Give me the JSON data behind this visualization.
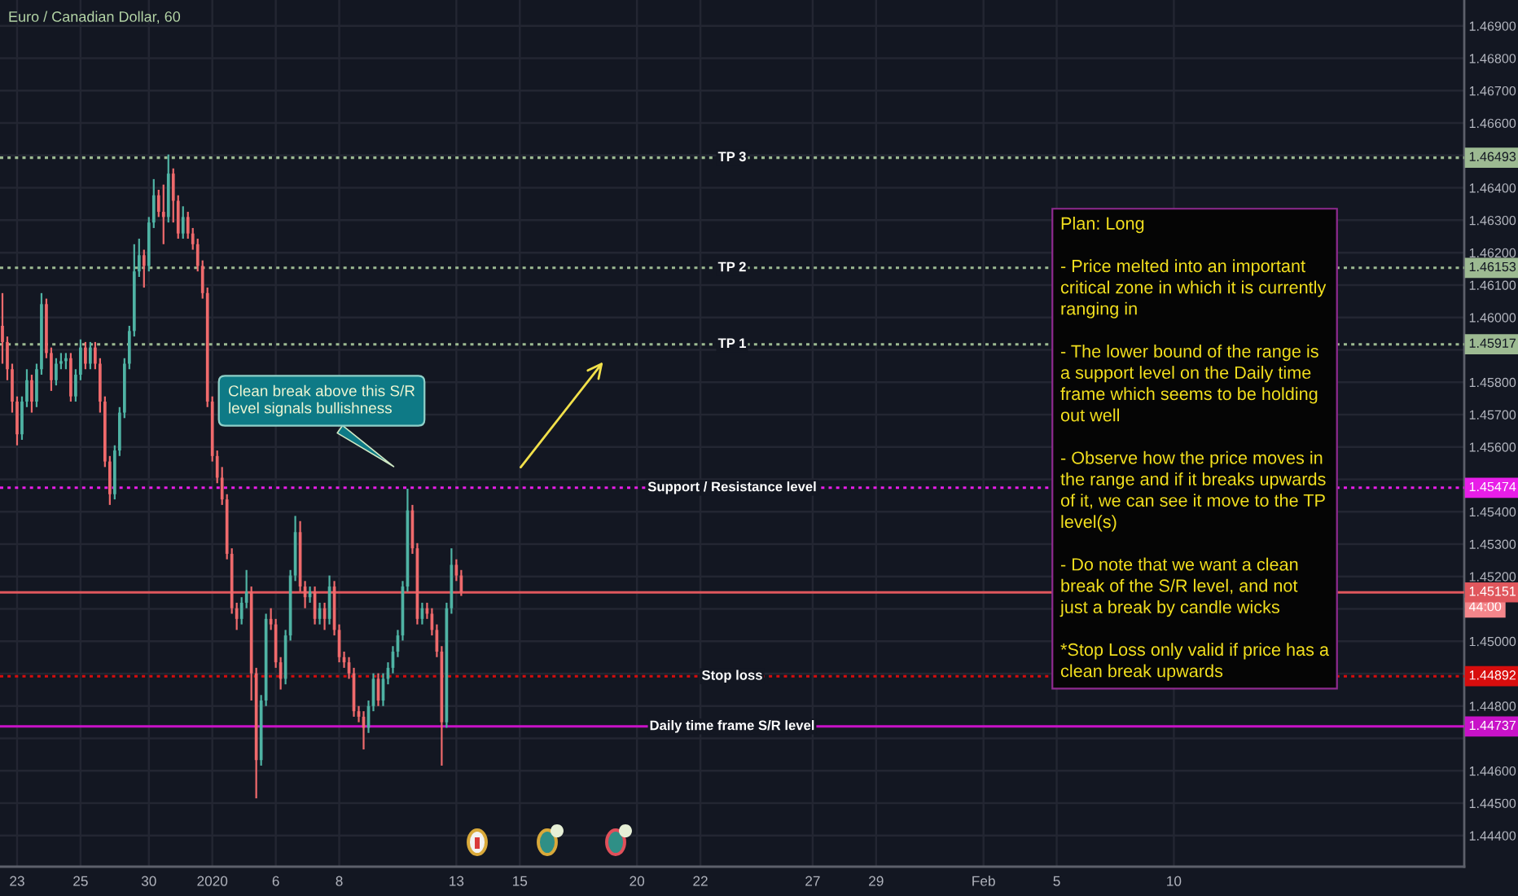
{
  "chart_data": {
    "type": "candlestick",
    "title": "Euro / Canadian Dollar, 60",
    "categories": [
      null,
      null,
      null,
      "23",
      null,
      null,
      null,
      null,
      null,
      null,
      null,
      null,
      null,
      null,
      null,
      null,
      "25",
      null,
      null,
      null,
      null,
      null,
      null,
      null,
      null,
      null,
      null,
      null,
      null,
      null,
      "30",
      null,
      null,
      null,
      null,
      null,
      null,
      null,
      null,
      null,
      null,
      null,
      null,
      "2020",
      null,
      null,
      null,
      null,
      null,
      null,
      null,
      null,
      null,
      null,
      null,
      null,
      "6",
      null,
      null,
      null,
      null,
      null,
      null,
      null,
      null,
      null,
      null,
      null,
      null,
      "8",
      null,
      null,
      null,
      null,
      null,
      null,
      null,
      null,
      null,
      null,
      null,
      null,
      null,
      null,
      null,
      null,
      null,
      null,
      null,
      null,
      null,
      null,
      null,
      "13",
      null,
      null,
      null,
      null,
      null,
      null,
      null,
      null,
      null,
      null,
      null,
      null,
      "15",
      null,
      null,
      null,
      null,
      null,
      null,
      null,
      null,
      null,
      null,
      null,
      null,
      null,
      null,
      null,
      null,
      null,
      null,
      null,
      null,
      null,
      null,
      null,
      "20",
      null,
      null,
      null,
      null,
      null,
      null,
      null,
      null,
      null,
      null,
      null,
      null,
      "22",
      null,
      null,
      null,
      null,
      null,
      null,
      null,
      null,
      null,
      null,
      null,
      null,
      null,
      null,
      null,
      null,
      null,
      null,
      null,
      null,
      null,
      null,
      "27",
      null,
      null,
      null,
      null,
      null,
      null,
      null,
      null,
      null,
      null,
      null,
      null,
      "29",
      null,
      null,
      null,
      null,
      null,
      null,
      null,
      null,
      null,
      null,
      null,
      null,
      null,
      null,
      null,
      null,
      null,
      null,
      null,
      null,
      null,
      "Feb",
      null,
      null,
      null,
      null,
      null,
      null,
      null,
      null,
      null,
      null,
      null,
      null,
      null,
      null,
      "5",
      null,
      null,
      null,
      null,
      null,
      null,
      null,
      null,
      null,
      null,
      null,
      null,
      null,
      null,
      null,
      null,
      null,
      null,
      null,
      null,
      null,
      null,
      null,
      "10",
      null,
      null,
      null,
      null,
      null,
      null,
      null,
      null,
      null,
      null,
      null,
      null,
      null,
      null,
      null,
      null,
      null,
      null,
      null,
      null,
      null,
      null,
      null,
      null,
      null,
      null,
      null,
      null,
      null,
      null,
      null,
      null,
      null,
      null,
      null,
      null,
      null,
      null,
      null,
      null,
      null,
      null,
      null,
      null,
      null,
      null,
      null,
      null,
      null,
      null,
      null,
      null,
      null,
      null,
      null,
      null,
      null,
      null,
      null
    ],
    "ohlc": [
      [
        1.45974,
        1.46075,
        1.45857,
        1.45924
      ],
      [
        1.45924,
        1.45941,
        1.45806,
        1.4584
      ],
      [
        1.4584,
        1.45857,
        1.45706,
        1.4574
      ],
      [
        1.4574,
        1.45756,
        1.45605,
        1.45639
      ],
      [
        1.45639,
        1.45756,
        1.45622,
        1.4574
      ],
      [
        1.4574,
        1.4584,
        1.45723,
        1.45806
      ],
      [
        1.45806,
        1.45823,
        1.45706,
        1.4574
      ],
      [
        1.4574,
        1.45857,
        1.45723,
        1.4584
      ],
      [
        1.4584,
        1.46075,
        1.45823,
        1.46041
      ],
      [
        1.46041,
        1.46058,
        1.45874,
        1.4589
      ],
      [
        1.4589,
        1.45907,
        1.45773,
        1.45806
      ],
      [
        1.45806,
        1.45874,
        1.4579,
        1.45857
      ],
      [
        1.45857,
        1.4589,
        1.4584,
        1.45865
      ],
      [
        1.45865,
        1.4589,
        1.4584,
        1.45874
      ],
      [
        1.45874,
        1.4589,
        1.4574,
        1.45756
      ],
      [
        1.45756,
        1.4584,
        1.4574,
        1.45823
      ],
      [
        1.45823,
        1.45932,
        1.45806,
        1.45907
      ],
      [
        1.45907,
        1.45924,
        1.4584,
        1.45857
      ],
      [
        1.45857,
        1.45924,
        1.4584,
        1.45907
      ],
      [
        1.45907,
        1.45924,
        1.4584,
        1.45857
      ],
      [
        1.45857,
        1.45874,
        1.45706,
        1.4574
      ],
      [
        1.4574,
        1.45756,
        1.45538,
        1.45555
      ],
      [
        1.45555,
        1.45572,
        1.45421,
        1.45454
      ],
      [
        1.45454,
        1.45605,
        1.45438,
        1.45589
      ],
      [
        1.45589,
        1.45723,
        1.45572,
        1.45706
      ],
      [
        1.45706,
        1.45874,
        1.45689,
        1.45857
      ],
      [
        1.45857,
        1.45974,
        1.4584,
        1.45958
      ],
      [
        1.45958,
        1.46226,
        1.45941,
        1.46142
      ],
      [
        1.46142,
        1.46243,
        1.46125,
        1.46192
      ],
      [
        1.46192,
        1.46209,
        1.46092,
        1.46159
      ],
      [
        1.46159,
        1.4631,
        1.46142,
        1.46293
      ],
      [
        1.46293,
        1.46427,
        1.46276,
        1.46377
      ],
      [
        1.46377,
        1.46394,
        1.4631,
        1.46326
      ],
      [
        1.46326,
        1.4641,
        1.46226,
        1.4631
      ],
      [
        1.4631,
        1.46503,
        1.46293,
        1.46444
      ],
      [
        1.46444,
        1.4646,
        1.46293,
        1.4636
      ],
      [
        1.4636,
        1.46377,
        1.46243,
        1.46259
      ],
      [
        1.46259,
        1.46343,
        1.46243,
        1.4631
      ],
      [
        1.4631,
        1.46326,
        1.46243,
        1.46259
      ],
      [
        1.46259,
        1.46276,
        1.46209,
        1.46226
      ],
      [
        1.46226,
        1.46243,
        1.46142,
        1.46159
      ],
      [
        1.46159,
        1.46176,
        1.46058,
        1.46075
      ],
      [
        1.46075,
        1.46092,
        1.45723,
        1.4574
      ],
      [
        1.4574,
        1.45756,
        1.45555,
        1.45572
      ],
      [
        1.45572,
        1.45589,
        1.45488,
        1.45505
      ],
      [
        1.45505,
        1.45538,
        1.45421,
        1.45438
      ],
      [
        1.45438,
        1.45454,
        1.45253,
        1.4527
      ],
      [
        1.4527,
        1.45287,
        1.45085,
        1.45102
      ],
      [
        1.45102,
        1.45119,
        1.45035,
        1.45069
      ],
      [
        1.45069,
        1.45136,
        1.45052,
        1.45119
      ],
      [
        1.45119,
        1.4522,
        1.45102,
        1.45153
      ],
      [
        1.45153,
        1.45169,
        1.44817,
        1.44901
      ],
      [
        1.44901,
        1.44918,
        1.44515,
        1.44633
      ],
      [
        1.44633,
        1.44834,
        1.44616,
        1.44817
      ],
      [
        1.44817,
        1.45085,
        1.448,
        1.45069
      ],
      [
        1.45069,
        1.45102,
        1.45035,
        1.45052
      ],
      [
        1.45052,
        1.45069,
        1.44918,
        1.44935
      ],
      [
        1.44935,
        1.44951,
        1.44851,
        1.44884
      ],
      [
        1.44884,
        1.45035,
        1.44867,
        1.45018
      ],
      [
        1.45018,
        1.4522,
        1.45002,
        1.45203
      ],
      [
        1.45203,
        1.45387,
        1.45186,
        1.45337
      ],
      [
        1.45337,
        1.45371,
        1.45153,
        1.45169
      ],
      [
        1.45169,
        1.45186,
        1.45102,
        1.45136
      ],
      [
        1.45136,
        1.45169,
        1.45119,
        1.45153
      ],
      [
        1.45153,
        1.45169,
        1.45052,
        1.45069
      ],
      [
        1.45069,
        1.45119,
        1.45052,
        1.45102
      ],
      [
        1.45102,
        1.45119,
        1.45035,
        1.45069
      ],
      [
        1.45069,
        1.45203,
        1.45052,
        1.45169
      ],
      [
        1.45169,
        1.45186,
        1.45018,
        1.45035
      ],
      [
        1.45035,
        1.45052,
        1.44935,
        1.44951
      ],
      [
        1.44951,
        1.44968,
        1.44918,
        1.44935
      ],
      [
        1.44935,
        1.44951,
        1.44884,
        1.44901
      ],
      [
        1.44901,
        1.44918,
        1.44767,
        1.44784
      ],
      [
        1.44784,
        1.448,
        1.4475,
        1.44767
      ],
      [
        1.44767,
        1.44784,
        1.44666,
        1.44733
      ],
      [
        1.44733,
        1.44817,
        1.44717,
        1.448
      ],
      [
        1.448,
        1.44901,
        1.44784,
        1.44884
      ],
      [
        1.44884,
        1.44901,
        1.448,
        1.44817
      ],
      [
        1.44817,
        1.44901,
        1.448,
        1.44884
      ],
      [
        1.44884,
        1.44935,
        1.44867,
        1.44918
      ],
      [
        1.44918,
        1.44985,
        1.44901,
        1.44968
      ],
      [
        1.44968,
        1.45035,
        1.44951,
        1.45018
      ],
      [
        1.45018,
        1.45186,
        1.45002,
        1.45169
      ],
      [
        1.45169,
        1.45471,
        1.45153,
        1.45404
      ],
      [
        1.45404,
        1.45421,
        1.4527,
        1.45287
      ],
      [
        1.45287,
        1.45303,
        1.45052,
        1.45069
      ],
      [
        1.45069,
        1.45119,
        1.45052,
        1.45102
      ],
      [
        1.45102,
        1.45119,
        1.45069,
        1.45085
      ],
      [
        1.45085,
        1.45102,
        1.45018,
        1.45035
      ],
      [
        1.45035,
        1.45052,
        1.44951,
        1.44968
      ],
      [
        1.44968,
        1.44985,
        1.44616,
        1.4475
      ],
      [
        1.4475,
        1.45119,
        1.44733,
        1.45102
      ],
      [
        1.45102,
        1.45287,
        1.45085,
        1.45236
      ],
      [
        1.45236,
        1.45253,
        1.45186,
        1.45203
      ],
      [
        1.45203,
        1.4522,
        1.4514,
        1.45151
      ],
      null,
      null,
      null,
      null,
      null,
      null,
      null,
      null,
      null,
      null,
      null,
      null,
      null,
      null,
      null,
      null,
      null,
      null,
      null,
      null,
      null,
      null,
      null,
      null,
      null,
      null,
      null,
      null,
      null,
      null,
      null,
      null,
      null,
      null,
      null,
      null,
      null,
      null,
      null,
      null,
      null,
      null,
      null,
      null,
      null,
      null,
      null,
      null,
      null,
      null,
      null,
      null,
      null,
      null,
      null,
      null,
      null,
      null,
      null,
      null,
      null,
      null,
      null,
      null,
      null,
      null,
      null,
      null,
      null,
      null,
      null,
      null,
      null,
      null,
      null,
      null,
      null,
      null,
      null,
      null,
      null,
      null,
      null,
      null,
      null,
      null,
      null,
      null,
      null,
      null,
      null,
      null,
      null,
      null,
      null,
      null,
      null,
      null,
      null,
      null,
      null,
      null,
      null,
      null,
      null,
      null,
      null,
      null,
      null,
      null,
      null,
      null,
      null,
      null,
      null,
      null,
      null,
      null,
      null,
      null,
      null,
      null,
      null,
      null,
      null,
      null,
      null,
      null,
      null,
      null,
      null,
      null,
      null,
      null,
      null,
      null,
      null,
      null,
      null,
      null,
      null,
      null,
      null,
      null,
      null,
      null,
      null,
      null,
      null,
      null,
      null,
      null,
      null,
      null,
      null,
      null,
      null,
      null,
      null,
      null,
      null,
      null,
      null,
      null,
      null,
      null,
      null,
      null,
      null,
      null,
      null,
      null,
      null,
      null,
      null,
      null,
      null,
      null,
      null,
      null,
      null,
      null,
      null,
      null,
      null,
      null,
      null,
      null,
      null,
      null,
      null,
      null,
      null,
      null,
      null,
      null,
      null,
      null,
      null,
      null,
      null,
      null,
      null,
      null,
      null
    ],
    "ylim": [
      1.44304,
      1.4698
    ],
    "yticks": [
      {
        "value": 1.444,
        "label": "1.44400"
      },
      {
        "value": 1.445,
        "label": "1.44500"
      },
      {
        "value": 1.446,
        "label": "1.44600"
      },
      {
        "value": 1.447,
        "label": null
      },
      {
        "value": 1.448,
        "label": "1.44800"
      },
      {
        "value": 1.449,
        "label": null
      },
      {
        "value": 1.45,
        "label": "1.45000"
      },
      {
        "value": 1.451,
        "label": null
      },
      {
        "value": 1.452,
        "label": "1.45200"
      },
      {
        "value": 1.453,
        "label": "1.45300"
      },
      {
        "value": 1.454,
        "label": "1.45400"
      },
      {
        "value": 1.455,
        "label": null
      },
      {
        "value": 1.456,
        "label": "1.45600"
      },
      {
        "value": 1.457,
        "label": "1.45700"
      },
      {
        "value": 1.458,
        "label": "1.45800"
      },
      {
        "value": 1.459,
        "label": null
      },
      {
        "value": 1.46,
        "label": "1.46000"
      },
      {
        "value": 1.461,
        "label": "1.46100"
      },
      {
        "value": 1.462,
        "label": "1.46200"
      },
      {
        "value": 1.463,
        "label": "1.46300"
      },
      {
        "value": 1.464,
        "label": "1.46400"
      },
      {
        "value": 1.465,
        "label": null
      },
      {
        "value": 1.466,
        "label": "1.46600"
      },
      {
        "value": 1.467,
        "label": "1.46700"
      },
      {
        "value": 1.468,
        "label": "1.46800"
      },
      {
        "value": 1.469,
        "label": "1.46900"
      }
    ],
    "grid": true,
    "ref_lines": [
      {
        "axis": "y",
        "value": 1.46493,
        "label": "TP 3",
        "color": "#9dba92",
        "line_style": "dotted"
      },
      {
        "axis": "y",
        "value": 1.46153,
        "label": "TP 2",
        "color": "#9dba92",
        "line_style": "dotted"
      },
      {
        "axis": "y",
        "value": 1.45917,
        "label": "TP 1",
        "color": "#9dba92",
        "line_style": "dotted"
      },
      {
        "axis": "y",
        "value": 1.45474,
        "label": "Support / Resistance level",
        "color": "#e81ee8",
        "line_style": "dotted"
      },
      {
        "axis": "y",
        "value": 1.45151,
        "color": "#e0575d",
        "line_style": "solid"
      },
      {
        "axis": "y",
        "value": 1.44892,
        "label": "Stop loss",
        "color": "#d80d0d",
        "line_style": "dotted"
      },
      {
        "axis": "y",
        "value": 1.44737,
        "label": "Daily time frame S/R level",
        "color": "#c812c8",
        "line_style": "solid"
      }
    ],
    "annotations": [
      "Clean break above this S/R\nlevel signals bullishness",
      "Plan: Long\n\n- Price melted into an important\ncritical zone in which it is currently\nranging in\n\n- The lower bound of the range is\na support level on the Daily time\nframe which seems to be holding\nout well\n\n- Observe how the price moves in\nthe range and if it breaks upwards\nof it, we can see it move to the TP\nlevel(s)\n\n- Do note that we want a clean\nbreak of the S/R level, and not\njust a break by candle wicks\n\n*Stop Loss only valid if price has a\nclean break upwards",
      "44:00",
      {
        "text": "1.46493",
        "y": 1.46493
      },
      {
        "text": "1.46153",
        "y": 1.46153
      },
      {
        "text": "1.45917",
        "y": 1.45917
      },
      {
        "text": "1.45474",
        "y": 1.45474
      },
      {
        "text": "1.45151",
        "y": 1.45151
      },
      {
        "text": "1.44892",
        "y": 1.44892
      },
      {
        "text": "1.44737",
        "y": 1.44737
      }
    ]
  }
}
